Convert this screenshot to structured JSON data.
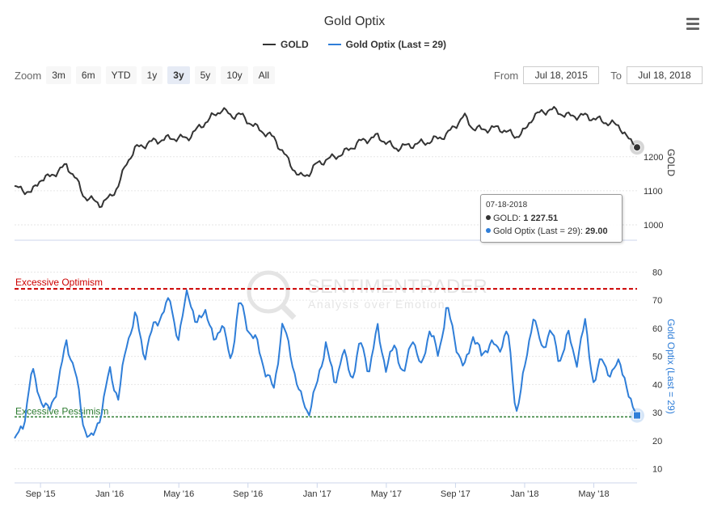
{
  "title": "Gold Optix",
  "legend": [
    {
      "label": "GOLD",
      "color": "#333333"
    },
    {
      "label": "Gold Optix (Last = 29)",
      "color": "#2f7ed8"
    }
  ],
  "zoom": {
    "label": "Zoom",
    "buttons": [
      "3m",
      "6m",
      "YTD",
      "1y",
      "3y",
      "5y",
      "10y",
      "All"
    ],
    "active": "3y"
  },
  "range": {
    "from_label": "From",
    "from_value": "Jul 18, 2015",
    "to_label": "To",
    "to_value": "Jul 18, 2018"
  },
  "watermark": {
    "name": "SENTIMENTRADER",
    "tagline": "Analysis over Emotion"
  },
  "tooltip": {
    "date": "07-18-2018",
    "gold_label": "GOLD:",
    "gold_value": "1 227.51",
    "optix_label": "Gold Optix (Last = 29):",
    "optix_value": "29.00"
  },
  "colors": {
    "gold": "#333333",
    "optix": "#2f7ed8",
    "optimism": "#cc0000",
    "pessimism": "#2e7d32"
  },
  "chart_data": {
    "type": "line",
    "x_ticks": [
      "Sep '15",
      "Jan '16",
      "May '16",
      "Sep '16",
      "Jan '17",
      "May '17",
      "Sep '17",
      "Jan '18",
      "May '18"
    ],
    "x_tick_months": [
      1.5,
      5.5,
      9.5,
      13.5,
      17.5,
      21.5,
      25.5,
      29.5,
      33.5
    ],
    "x_range_months": [
      0,
      36
    ],
    "series": [
      {
        "name": "GOLD",
        "axis_label": "GOLD",
        "ylim": [
          955,
          1380
        ],
        "y_ticks": [
          1000,
          1100,
          1200
        ],
        "months": [
          0,
          1,
          1.5,
          2,
          3,
          3.5,
          4,
          5,
          5.5,
          6,
          6.5,
          7,
          8,
          9,
          10,
          11,
          12,
          12.5,
          13,
          14,
          15,
          16,
          16.5,
          17,
          17.5,
          18,
          19,
          20,
          21,
          22,
          23,
          24,
          25,
          26,
          26.5,
          27,
          28,
          29,
          29.5,
          30,
          31,
          32,
          33,
          34,
          35,
          35.5,
          36
        ],
        "values": [
          1110,
          1095,
          1135,
          1140,
          1175,
          1140,
          1085,
          1060,
          1080,
          1115,
          1185,
          1225,
          1245,
          1255,
          1255,
          1300,
          1340,
          1320,
          1325,
          1285,
          1255,
          1175,
          1140,
          1150,
          1180,
          1190,
          1210,
          1245,
          1260,
          1225,
          1235,
          1245,
          1265,
          1320,
          1285,
          1280,
          1285,
          1260,
          1275,
          1320,
          1340,
          1320,
          1320,
          1305,
          1290,
          1250,
          1227.51
        ]
      },
      {
        "name": "Gold Optix (Last = 29)",
        "axis_label": "Gold Optix (Last = 29)",
        "ylim": [
          5,
          87
        ],
        "y_ticks": [
          10,
          20,
          30,
          40,
          50,
          60,
          70,
          80
        ],
        "months": [
          0,
          0.5,
          1,
          1.5,
          2,
          2.5,
          3,
          3.5,
          4,
          4.5,
          5,
          5.5,
          6,
          6.5,
          7,
          7.5,
          8,
          8.5,
          9,
          9.5,
          10,
          10.5,
          11,
          11.5,
          12,
          12.5,
          13,
          13.5,
          14,
          14.5,
          15,
          15.5,
          16,
          16.5,
          17,
          17.5,
          18,
          18.5,
          19,
          19.5,
          20,
          20.5,
          21,
          21.5,
          22,
          22.5,
          23,
          23.5,
          24,
          24.5,
          25,
          25.5,
          26,
          26.5,
          27,
          27.5,
          28,
          28.5,
          29,
          29.5,
          30,
          30.5,
          31,
          31.5,
          32,
          32.5,
          33,
          33.5,
          34,
          34.5,
          35,
          35.5,
          36
        ],
        "values": [
          20,
          25,
          45,
          35,
          30,
          40,
          55,
          45,
          25,
          20,
          30,
          45,
          35,
          55,
          65,
          50,
          60,
          65,
          70,
          55,
          75,
          60,
          68,
          55,
          62,
          48,
          70,
          60,
          55,
          45,
          38,
          62,
          50,
          36,
          30,
          40,
          55,
          40,
          52,
          42,
          55,
          45,
          60,
          45,
          55,
          42,
          58,
          45,
          60,
          50,
          68,
          55,
          45,
          58,
          50,
          55,
          52,
          60,
          30,
          45,
          65,
          52,
          60,
          48,
          58,
          48,
          62,
          40,
          50,
          42,
          50,
          35,
          29
        ],
        "last": 29
      }
    ],
    "bands": [
      {
        "label": "Excessive Optimism",
        "value": 74
      },
      {
        "label": "Excessive Pessimism",
        "value": 28.5
      }
    ]
  }
}
